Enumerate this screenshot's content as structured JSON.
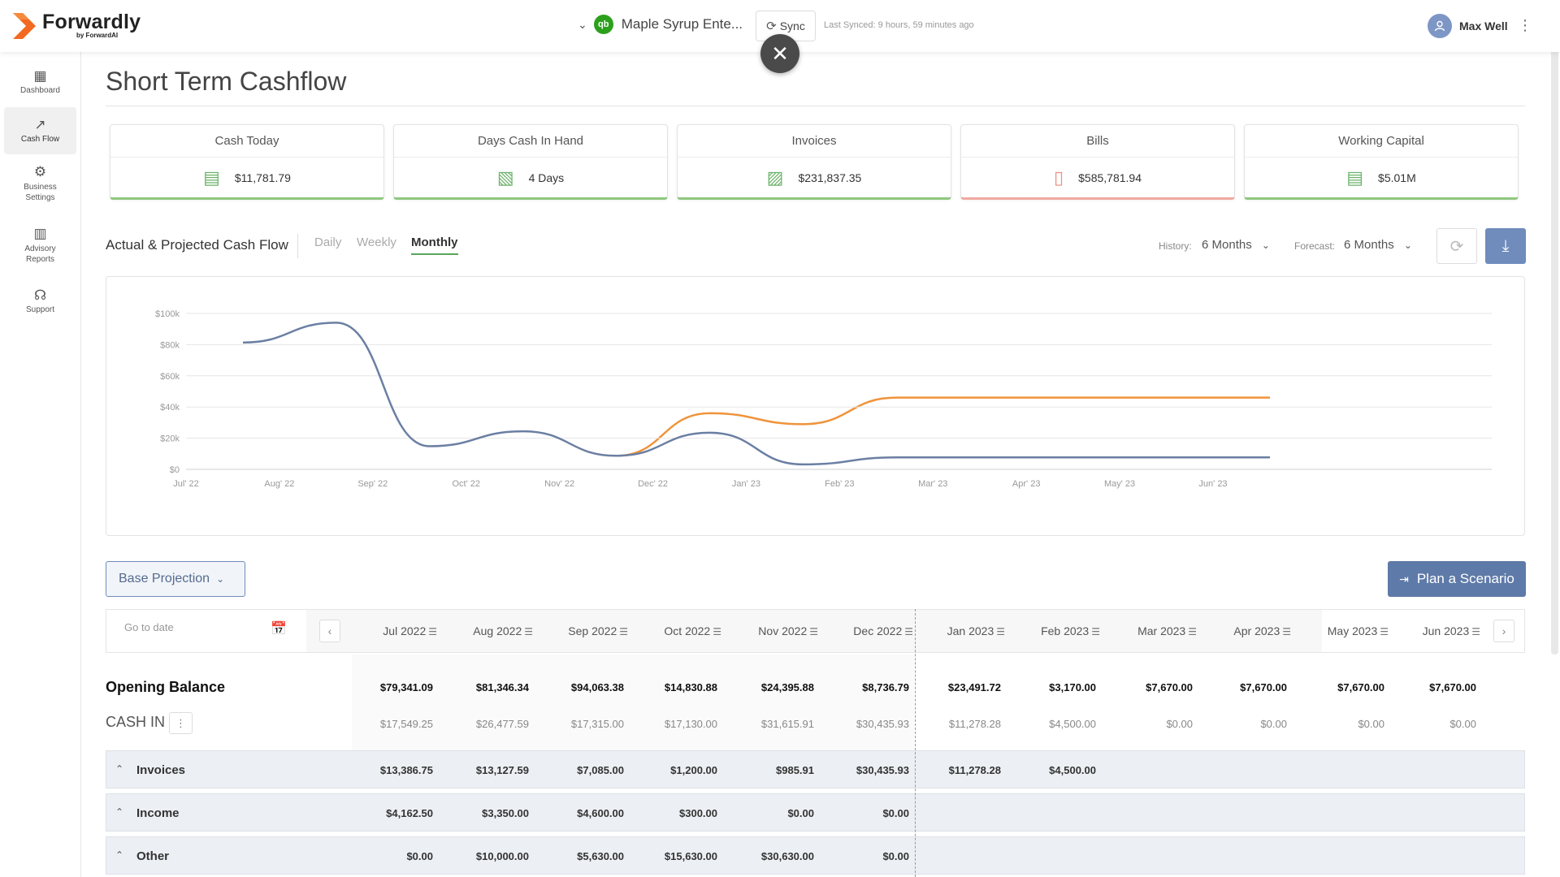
{
  "header": {
    "brand_name": "Forwardly",
    "brand_by": "by ForwardAI",
    "org_name": "Maple Syrup Ente...",
    "qb_badge": "qb",
    "sync_label": "Sync",
    "last_synced": "Last Synced: 9 hours, 59 minutes ago",
    "user_name": "Max Well"
  },
  "sidebar": {
    "items": [
      {
        "label": "Dashboard",
        "icon": "dashboard-icon"
      },
      {
        "label": "Cash Flow",
        "icon": "trend-arrow-icon",
        "active": true
      },
      {
        "label": "Business Settings",
        "icon": "gear-icon"
      },
      {
        "label": "Advisory Reports",
        "icon": "report-chart-icon"
      },
      {
        "label": "Support",
        "icon": "headset-icon"
      }
    ]
  },
  "page": {
    "title": "Short Term Cashflow"
  },
  "cards": [
    {
      "title": "Cash Today",
      "value": "$11,781.79",
      "icon": "cash-stack-icon",
      "status_color": "#8fc77f"
    },
    {
      "title": "Days Cash In Hand",
      "value": "4 Days",
      "icon": "cash-hand-icon",
      "status_color": "#8fc77f"
    },
    {
      "title": "Invoices",
      "value": "$231,837.35",
      "icon": "invoice-cash-icon",
      "status_color": "#8fc77f"
    },
    {
      "title": "Bills",
      "value": "$585,781.94",
      "icon": "bill-document-icon",
      "status_color": "#f0a9a0"
    },
    {
      "title": "Working Capital",
      "value": "$5.01M",
      "icon": "cash-stack-icon",
      "status_color": "#8fc77f"
    }
  ],
  "cashflow": {
    "section_title": "Actual & Projected Cash Flow",
    "tabs": [
      "Daily",
      "Weekly",
      "Monthly"
    ],
    "active_tab": "Monthly",
    "history_label": "History:",
    "history_value": "6 Months",
    "forecast_label": "Forecast:",
    "forecast_value": "6 Months"
  },
  "chart_data": {
    "type": "line",
    "x": [
      "Jul' 22",
      "Aug' 22",
      "Sep' 22",
      "Oct' 22",
      "Nov' 22",
      "Dec' 22",
      "Jan' 23",
      "Feb' 23",
      "Mar' 23",
      "Apr' 23",
      "May' 23",
      "Jun' 23"
    ],
    "y_ticks": [
      "$0",
      "$20k",
      "$40k",
      "$60k",
      "$80k",
      "$100k"
    ],
    "ylim": [
      0,
      100000
    ],
    "grid": true,
    "series": [
      {
        "color": "#6b7fa3",
        "values": [
          81346,
          94063,
          14831,
          24396,
          8737,
          23492,
          3170,
          7670,
          7670,
          7670,
          7670,
          7670
        ]
      },
      {
        "color": "#f0933a",
        "values": [
          null,
          null,
          null,
          null,
          8737,
          36000,
          29000,
          46000,
          46000,
          46000,
          46000,
          46000
        ]
      }
    ]
  },
  "controls": {
    "base_projection": "Base Projection",
    "plan_scenario": "Plan a Scenario",
    "goto_placeholder": "Go to date"
  },
  "table": {
    "months": [
      "Jul 2022",
      "Aug 2022",
      "Sep 2022",
      "Oct 2022",
      "Nov 2022",
      "Dec 2022",
      "Jan 2023",
      "Feb 2023",
      "Mar 2023",
      "Apr 2023",
      "May 2023",
      "Jun 2023"
    ],
    "opening_balance_label": "Opening Balance",
    "opening_balance": [
      "$79,341.09",
      "$81,346.34",
      "$94,063.38",
      "$14,830.88",
      "$24,395.88",
      "$8,736.79",
      "$23,491.72",
      "$3,170.00",
      "$7,670.00",
      "$7,670.00",
      "$7,670.00",
      "$7,670.00"
    ],
    "cash_in_label": "CASH IN",
    "cash_in": [
      "$17,549.25",
      "$26,477.59",
      "$17,315.00",
      "$17,130.00",
      "$31,615.91",
      "$30,435.93",
      "$11,278.28",
      "$4,500.00",
      "$0.00",
      "$0.00",
      "$0.00",
      "$0.00"
    ],
    "groups": [
      {
        "label": "Invoices",
        "values": [
          "$13,386.75",
          "$13,127.59",
          "$7,085.00",
          "$1,200.00",
          "$985.91",
          "$30,435.93",
          "$11,278.28",
          "$4,500.00",
          "",
          "",
          "",
          ""
        ]
      },
      {
        "label": "Income",
        "values": [
          "$4,162.50",
          "$3,350.00",
          "$4,600.00",
          "$300.00",
          "$0.00",
          "$0.00",
          "",
          "",
          "",
          "",
          "",
          ""
        ]
      },
      {
        "label": "Other",
        "values": [
          "$0.00",
          "$10,000.00",
          "$5,630.00",
          "$15,630.00",
          "$30,630.00",
          "$0.00",
          "",
          "",
          "",
          "",
          "",
          ""
        ]
      }
    ]
  }
}
